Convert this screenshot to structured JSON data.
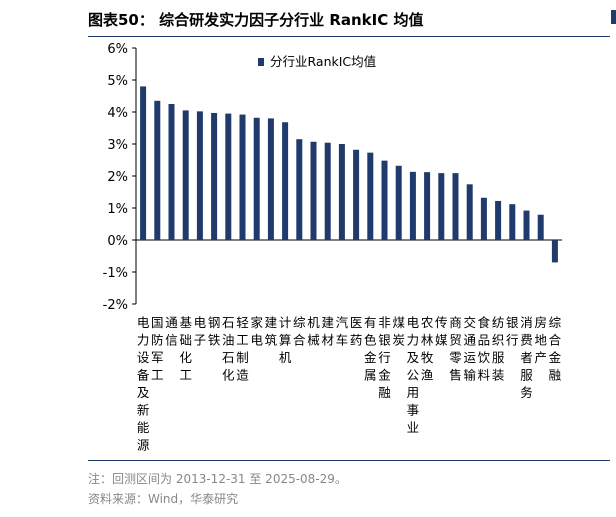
{
  "header": {
    "title": "图表50：  综合研发实力因子分行业 RankIC 均值"
  },
  "footer": {
    "note": "注：回测区间为 2013-12-31 至 2025-08-29。",
    "source": "资料来源：Wind，华泰研究"
  },
  "colors": {
    "bar": "#1f3a6b",
    "rule": "#1f3a6b"
  },
  "chart_data": {
    "type": "bar",
    "ylim": [
      -2,
      6
    ],
    "yticks": [
      "-2%",
      "-1%",
      "0%",
      "1%",
      "2%",
      "3%",
      "4%",
      "5%",
      "6%"
    ],
    "legend_position": "top",
    "categories": [
      "电力设备及新能源",
      "国防军工",
      "通信",
      "基础化工",
      "电子",
      "钢铁",
      "石油石化",
      "轻工制造",
      "家电",
      "建筑",
      "计算机",
      "综合",
      "机械",
      "建材",
      "汽车",
      "医药",
      "有色金属",
      "非银行金融",
      "煤炭",
      "电力及公用事业",
      "农林牧渔",
      "传媒",
      "商贸零售",
      "交通运输",
      "食品饮料",
      "纺织服装",
      "银行",
      "消费者服务",
      "房地产",
      "综合金融"
    ],
    "series": [
      {
        "name": "分行业RankIC均值",
        "values": [
          4.8,
          4.35,
          4.25,
          4.05,
          4.02,
          3.97,
          3.95,
          3.92,
          3.82,
          3.8,
          3.68,
          3.15,
          3.07,
          3.04,
          3.0,
          2.82,
          2.73,
          2.48,
          2.32,
          2.13,
          2.12,
          2.09,
          2.09,
          1.74,
          1.32,
          1.22,
          1.12,
          0.92,
          0.79,
          -0.7
        ]
      }
    ]
  }
}
